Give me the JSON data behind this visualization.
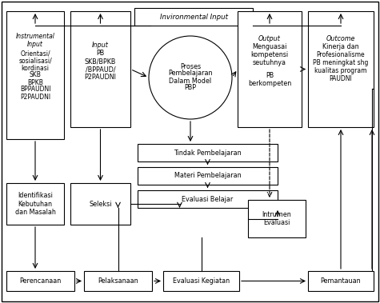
{
  "bg_color": "#ffffff",
  "env_input": {
    "text": "Invironmental Input"
  },
  "instrumental": {
    "text": "Instrumental\nInput\nOrientasi/\nsosialisasi/\nkordinasi\nSKB\nBPKB\nBPPAUDNI\nP2PAUDNI"
  },
  "input_pb": {
    "text": "Input\nPB\nSKB/BPKB\n/BPPAUD/\nP2PAUDNI"
  },
  "proses": {
    "text": "Proses\nPembelajaran\nDalam Model\nPBP"
  },
  "output": {
    "text": "Output\nMenguasai\nkompetensi\nseutuhnya\n\nPB\nberkompeten"
  },
  "outcome": {
    "text": "Outcome\nKinerja dan\nProfesionalisme\nPB meningkat shg\nkualitas program\nPAUDNI"
  },
  "tindak": {
    "text": "Tindak Pembelajaran"
  },
  "materi": {
    "text": "Materi Pembelajaran"
  },
  "evaluasi_belajar": {
    "text": "Evaluasi Belajar"
  },
  "identifikasi": {
    "text": "Identifikasi\nKebutuhan\ndan Masalah"
  },
  "seleksi": {
    "text": "Seleksi"
  },
  "intrumen": {
    "text": "Intrumen\nEvaluasi"
  },
  "perencanaan": {
    "text": "Perencanaan"
  },
  "pelaksanaan": {
    "text": "Pelaksanaan"
  },
  "evaluasi_kegiatan": {
    "text": "Evaluasi Kegiatan"
  },
  "pemantauan": {
    "text": "Pemantauan"
  }
}
